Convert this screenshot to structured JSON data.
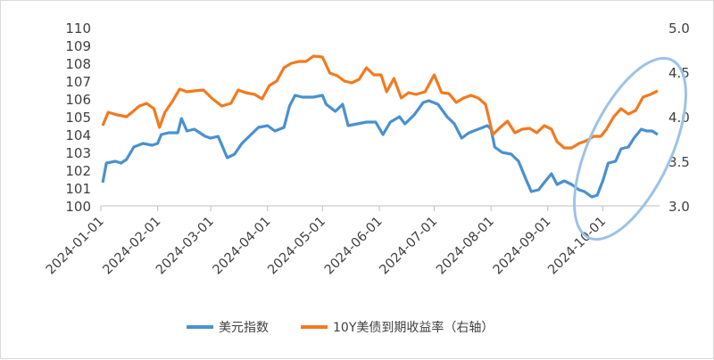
{
  "chart_data": {
    "type": "line",
    "title": "",
    "x_tick_labels": [
      "2024-01-01",
      "2024-02-01",
      "2024-03-01",
      "2024-04-01",
      "2024-05-01",
      "2024-06-01",
      "2024-07-01",
      "2024-08-01",
      "2024-09-01",
      "2024-10-01"
    ],
    "y_left": {
      "ylim": [
        100,
        110
      ],
      "ticks": [
        "100",
        "101",
        "102",
        "103",
        "104",
        "105",
        "106",
        "107",
        "108",
        "109",
        "110"
      ]
    },
    "y_right": {
      "ylim": [
        3.0,
        5.0
      ],
      "ticks": [
        "3.0",
        "3.5",
        "4.0",
        "4.5",
        "5.0"
      ]
    },
    "grid": false,
    "legend_position": "bottom",
    "series": [
      {
        "name": "美元指数",
        "axis": "left",
        "color": "#4a90d0",
        "points": [
          [
            "2024-01-02",
            101.3
          ],
          [
            "2024-01-04",
            102.4
          ],
          [
            "2024-01-09",
            102.5
          ],
          [
            "2024-01-12",
            102.4
          ],
          [
            "2024-01-15",
            102.6
          ],
          [
            "2024-01-19",
            103.3
          ],
          [
            "2024-01-24",
            103.5
          ],
          [
            "2024-01-29",
            103.4
          ],
          [
            "2024-02-01",
            103.5
          ],
          [
            "2024-02-03",
            104.0
          ],
          [
            "2024-02-07",
            104.1
          ],
          [
            "2024-02-12",
            104.1
          ],
          [
            "2024-02-14",
            104.9
          ],
          [
            "2024-02-17",
            104.2
          ],
          [
            "2024-02-21",
            104.3
          ],
          [
            "2024-02-27",
            103.9
          ],
          [
            "2024-03-01",
            103.8
          ],
          [
            "2024-03-05",
            103.9
          ],
          [
            "2024-03-10",
            102.7
          ],
          [
            "2024-03-14",
            102.9
          ],
          [
            "2024-03-18",
            103.5
          ],
          [
            "2024-03-22",
            103.9
          ],
          [
            "2024-03-27",
            104.4
          ],
          [
            "2024-04-01",
            104.5
          ],
          [
            "2024-04-05",
            104.2
          ],
          [
            "2024-04-10",
            104.4
          ],
          [
            "2024-04-13",
            105.6
          ],
          [
            "2024-04-16",
            106.2
          ],
          [
            "2024-04-20",
            106.1
          ],
          [
            "2024-04-26",
            106.1
          ],
          [
            "2024-05-01",
            106.2
          ],
          [
            "2024-05-03",
            105.7
          ],
          [
            "2024-05-08",
            105.3
          ],
          [
            "2024-05-12",
            105.7
          ],
          [
            "2024-05-15",
            104.5
          ],
          [
            "2024-05-20",
            104.6
          ],
          [
            "2024-05-25",
            104.7
          ],
          [
            "2024-05-30",
            104.7
          ],
          [
            "2024-06-03",
            104.0
          ],
          [
            "2024-06-07",
            104.7
          ],
          [
            "2024-06-12",
            105.0
          ],
          [
            "2024-06-15",
            104.6
          ],
          [
            "2024-06-20",
            105.1
          ],
          [
            "2024-06-25",
            105.8
          ],
          [
            "2024-06-28",
            105.9
          ],
          [
            "2024-07-03",
            105.7
          ],
          [
            "2024-07-08",
            105.0
          ],
          [
            "2024-07-12",
            104.6
          ],
          [
            "2024-07-16",
            103.8
          ],
          [
            "2024-07-20",
            104.1
          ],
          [
            "2024-07-25",
            104.3
          ],
          [
            "2024-07-30",
            104.5
          ],
          [
            "2024-08-01",
            104.3
          ],
          [
            "2024-08-03",
            103.3
          ],
          [
            "2024-08-07",
            103.0
          ],
          [
            "2024-08-12",
            102.9
          ],
          [
            "2024-08-16",
            102.5
          ],
          [
            "2024-08-20",
            101.5
          ],
          [
            "2024-08-23",
            100.8
          ],
          [
            "2024-08-27",
            100.9
          ],
          [
            "2024-08-30",
            101.3
          ],
          [
            "2024-09-03",
            101.8
          ],
          [
            "2024-09-06",
            101.2
          ],
          [
            "2024-09-10",
            101.4
          ],
          [
            "2024-09-14",
            101.2
          ],
          [
            "2024-09-18",
            100.9
          ],
          [
            "2024-09-21",
            100.8
          ],
          [
            "2024-09-25",
            100.5
          ],
          [
            "2024-09-28",
            100.6
          ],
          [
            "2024-10-01",
            101.4
          ],
          [
            "2024-10-04",
            102.4
          ],
          [
            "2024-10-08",
            102.5
          ],
          [
            "2024-10-11",
            103.2
          ],
          [
            "2024-10-15",
            103.3
          ],
          [
            "2024-10-18",
            103.8
          ],
          [
            "2024-10-22",
            104.3
          ],
          [
            "2024-10-25",
            104.2
          ],
          [
            "2024-10-28",
            104.2
          ],
          [
            "2024-10-31",
            104.0
          ]
        ]
      },
      {
        "name": "10Y美债到期收益率（右轴）",
        "axis": "right",
        "color": "#f27a1f",
        "points": [
          [
            "2024-01-02",
            3.9
          ],
          [
            "2024-01-05",
            4.05
          ],
          [
            "2024-01-10",
            4.02
          ],
          [
            "2024-01-15",
            4.0
          ],
          [
            "2024-01-18",
            4.05
          ],
          [
            "2024-01-22",
            4.12
          ],
          [
            "2024-01-26",
            4.15
          ],
          [
            "2024-01-30",
            4.09
          ],
          [
            "2024-02-02",
            3.88
          ],
          [
            "2024-02-05",
            4.05
          ],
          [
            "2024-02-09",
            4.17
          ],
          [
            "2024-02-13",
            4.31
          ],
          [
            "2024-02-17",
            4.28
          ],
          [
            "2024-02-21",
            4.29
          ],
          [
            "2024-02-26",
            4.3
          ],
          [
            "2024-03-02",
            4.2
          ],
          [
            "2024-03-07",
            4.12
          ],
          [
            "2024-03-12",
            4.15
          ],
          [
            "2024-03-16",
            4.3
          ],
          [
            "2024-03-20",
            4.27
          ],
          [
            "2024-03-25",
            4.25
          ],
          [
            "2024-03-29",
            4.2
          ],
          [
            "2024-04-02",
            4.35
          ],
          [
            "2024-04-06",
            4.4
          ],
          [
            "2024-04-10",
            4.55
          ],
          [
            "2024-04-14",
            4.6
          ],
          [
            "2024-04-18",
            4.62
          ],
          [
            "2024-04-22",
            4.62
          ],
          [
            "2024-04-26",
            4.68
          ],
          [
            "2024-05-01",
            4.67
          ],
          [
            "2024-05-05",
            4.49
          ],
          [
            "2024-05-09",
            4.46
          ],
          [
            "2024-05-13",
            4.4
          ],
          [
            "2024-05-17",
            4.38
          ],
          [
            "2024-05-21",
            4.42
          ],
          [
            "2024-05-25",
            4.55
          ],
          [
            "2024-05-29",
            4.47
          ],
          [
            "2024-06-02",
            4.47
          ],
          [
            "2024-06-05",
            4.28
          ],
          [
            "2024-06-09",
            4.43
          ],
          [
            "2024-06-13",
            4.21
          ],
          [
            "2024-06-17",
            4.27
          ],
          [
            "2024-06-21",
            4.25
          ],
          [
            "2024-06-26",
            4.28
          ],
          [
            "2024-07-01",
            4.47
          ],
          [
            "2024-07-05",
            4.27
          ],
          [
            "2024-07-09",
            4.26
          ],
          [
            "2024-07-13",
            4.16
          ],
          [
            "2024-07-17",
            4.21
          ],
          [
            "2024-07-21",
            4.24
          ],
          [
            "2024-07-25",
            4.21
          ],
          [
            "2024-07-29",
            4.14
          ],
          [
            "2024-08-02",
            3.8
          ],
          [
            "2024-08-06",
            3.88
          ],
          [
            "2024-08-10",
            3.95
          ],
          [
            "2024-08-14",
            3.82
          ],
          [
            "2024-08-18",
            3.86
          ],
          [
            "2024-08-22",
            3.87
          ],
          [
            "2024-08-26",
            3.82
          ],
          [
            "2024-08-30",
            3.9
          ],
          [
            "2024-09-03",
            3.86
          ],
          [
            "2024-09-06",
            3.72
          ],
          [
            "2024-09-10",
            3.65
          ],
          [
            "2024-09-14",
            3.65
          ],
          [
            "2024-09-18",
            3.7
          ],
          [
            "2024-09-22",
            3.73
          ],
          [
            "2024-09-26",
            3.78
          ],
          [
            "2024-09-30",
            3.78
          ],
          [
            "2024-10-03",
            3.86
          ],
          [
            "2024-10-07",
            4.0
          ],
          [
            "2024-10-11",
            4.09
          ],
          [
            "2024-10-15",
            4.03
          ],
          [
            "2024-10-19",
            4.07
          ],
          [
            "2024-10-23",
            4.22
          ],
          [
            "2024-10-27",
            4.25
          ],
          [
            "2024-10-31",
            4.29
          ]
        ]
      }
    ],
    "annotation": {
      "shape": "ellipse",
      "color": "#9dc3e6"
    }
  }
}
